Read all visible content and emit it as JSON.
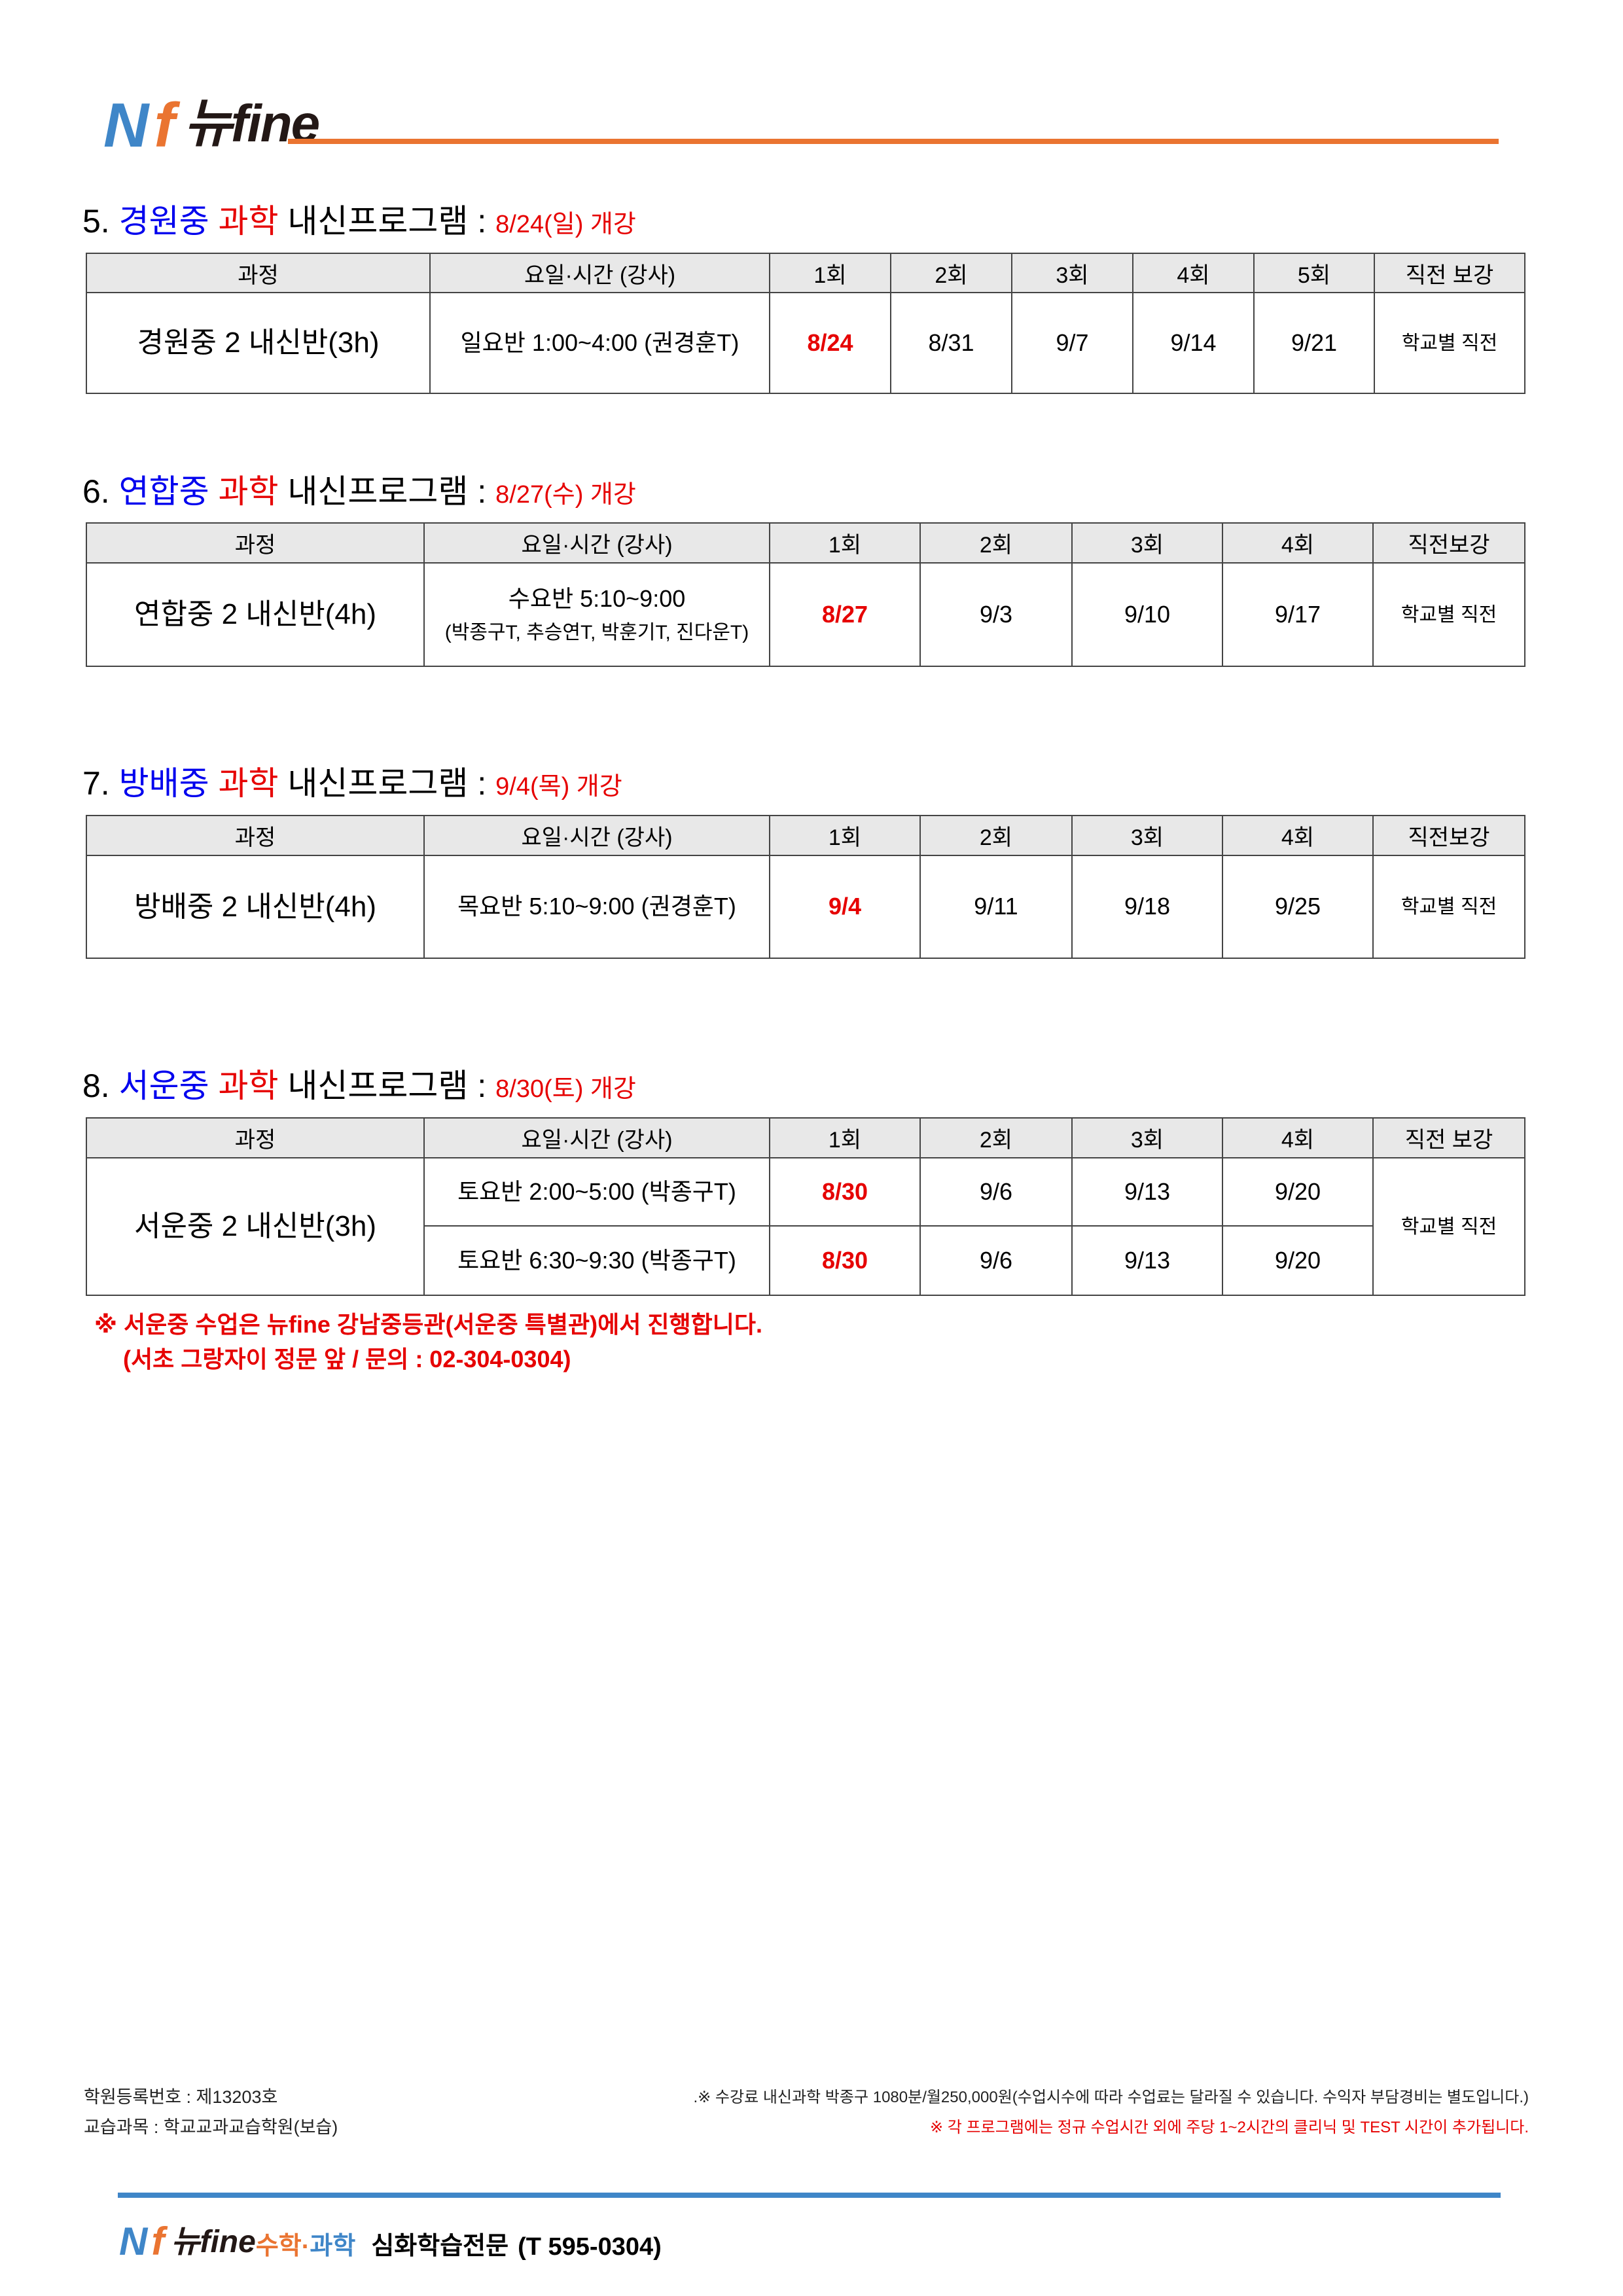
{
  "brand": {
    "logo_mark": "Nf",
    "logo_word": "뉴fine",
    "accent_orange": "#ea7431",
    "accent_blue": "#3f86c8"
  },
  "sections": [
    {
      "num": "5.",
      "school": "경원중",
      "subject": "과학",
      "program": "내신프로그램 :",
      "open": "8/24(일) 개강",
      "headers": [
        "과정",
        "요일·시간 (강사)",
        "1회",
        "2회",
        "3회",
        "4회",
        "5회",
        "직전 보강"
      ],
      "rows": [
        {
          "course": "경원중 2 내신반(3h)",
          "time": "일요반 1:00~4:00 (권경훈T)",
          "time_sub": "",
          "dates": [
            "8/24",
            "8/31",
            "9/7",
            "9/14",
            "9/21"
          ],
          "extra": "학교별 직전"
        }
      ]
    },
    {
      "num": "6.",
      "school": "연합중",
      "subject": "과학",
      "program": "내신프로그램 :",
      "open": "8/27(수) 개강",
      "headers": [
        "과정",
        "요일·시간 (강사)",
        "1회",
        "2회",
        "3회",
        "4회",
        "직전보강"
      ],
      "rows": [
        {
          "course": "연합중 2 내신반(4h)",
          "time": "수요반 5:10~9:00",
          "time_sub": "(박종구T, 추승연T, 박훈기T, 진다운T)",
          "dates": [
            "8/27",
            "9/3",
            "9/10",
            "9/17"
          ],
          "extra": "학교별 직전"
        }
      ]
    },
    {
      "num": "7.",
      "school": "방배중",
      "subject": "과학",
      "program": "내신프로그램 :",
      "open": "9/4(목) 개강",
      "headers": [
        "과정",
        "요일·시간 (강사)",
        "1회",
        "2회",
        "3회",
        "4회",
        "직전보강"
      ],
      "rows": [
        {
          "course": "방배중 2 내신반(4h)",
          "time": "목요반 5:10~9:00 (권경훈T)",
          "time_sub": "",
          "dates": [
            "9/4",
            "9/11",
            "9/18",
            "9/25"
          ],
          "extra": "학교별 직전"
        }
      ]
    },
    {
      "num": "8.",
      "school": "서운중",
      "subject": "과학",
      "program": "내신프로그램 :",
      "open": "8/30(토) 개강",
      "headers": [
        "과정",
        "요일·시간 (강사)",
        "1회",
        "2회",
        "3회",
        "4회",
        "직전 보강"
      ],
      "rows": [
        {
          "course": "서운중 2 내신반(3h)",
          "time": "토요반 2:00~5:00 (박종구T)",
          "time_sub": "",
          "dates": [
            "8/30",
            "9/6",
            "9/13",
            "9/20"
          ],
          "extra": "학교별 직전"
        },
        {
          "course": "",
          "time": "토요반 6:30~9:30 (박종구T)",
          "time_sub": "",
          "dates": [
            "8/30",
            "9/6",
            "9/13",
            "9/20"
          ],
          "extra": ""
        }
      ]
    }
  ],
  "note": {
    "line1": "※ 서운중 수업은 뉴fine 강남중등관(서운중 특별관)에서 진행합니다.",
    "line2": "(서초 그랑자이 정문 앞  / 문의 : 02-304-0304)"
  },
  "footer": {
    "reg": "학원등록번호 : 제13203호",
    "subjects": "교습과목 : 학교교과교습학원(보습)",
    "fee": ".※ 수강료 내신과학 박종구 1080분/월250,000원(수업시수에 따라 수업료는 달라질 수 있습니다. 수익자 부담경비는 별도입니다.)",
    "extra": "※ 각 프로그램에는 정규 수업시간 외에 주당 1~2시간의 클리닉 및 TEST 시간이 추가됩니다.",
    "logo_word": "뉴fine",
    "math": "수학",
    "dot": "·",
    "science": "과학",
    "tagline": "심화학습전문",
    "phone": "(T  595-0304)"
  }
}
